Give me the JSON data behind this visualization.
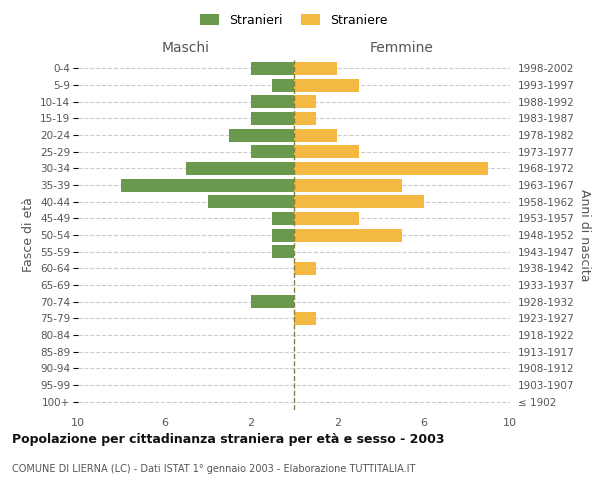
{
  "age_groups": [
    "100+",
    "95-99",
    "90-94",
    "85-89",
    "80-84",
    "75-79",
    "70-74",
    "65-69",
    "60-64",
    "55-59",
    "50-54",
    "45-49",
    "40-44",
    "35-39",
    "30-34",
    "25-29",
    "20-24",
    "15-19",
    "10-14",
    "5-9",
    "0-4"
  ],
  "birth_years": [
    "≤ 1902",
    "1903-1907",
    "1908-1912",
    "1913-1917",
    "1918-1922",
    "1923-1927",
    "1928-1932",
    "1933-1937",
    "1938-1942",
    "1943-1947",
    "1948-1952",
    "1953-1957",
    "1958-1962",
    "1963-1967",
    "1968-1972",
    "1973-1977",
    "1978-1982",
    "1983-1987",
    "1988-1992",
    "1993-1997",
    "1998-2002"
  ],
  "maschi": [
    0,
    0,
    0,
    0,
    0,
    0,
    2,
    0,
    0,
    1,
    1,
    1,
    4,
    8,
    5,
    2,
    3,
    2,
    2,
    1,
    2
  ],
  "femmine": [
    0,
    0,
    0,
    0,
    0,
    1,
    0,
    0,
    1,
    0,
    5,
    3,
    6,
    5,
    9,
    3,
    2,
    1,
    1,
    3,
    2
  ],
  "maschi_color": "#6a994e",
  "femmine_color": "#f4b942",
  "center_line_color": "#808040",
  "grid_color": "#cccccc",
  "bg_color": "#ffffff",
  "title": "Popolazione per cittadinanza straniera per età e sesso - 2003",
  "subtitle": "COMUNE DI LIERNA (LC) - Dati ISTAT 1° gennaio 2003 - Elaborazione TUTTITALIA.IT",
  "xlabel_left": "Maschi",
  "xlabel_right": "Femmine",
  "ylabel_left": "Fasce di età",
  "ylabel_right": "Anni di nascita",
  "xlim": 10,
  "legend_stranieri": "Stranieri",
  "legend_straniere": "Straniere"
}
